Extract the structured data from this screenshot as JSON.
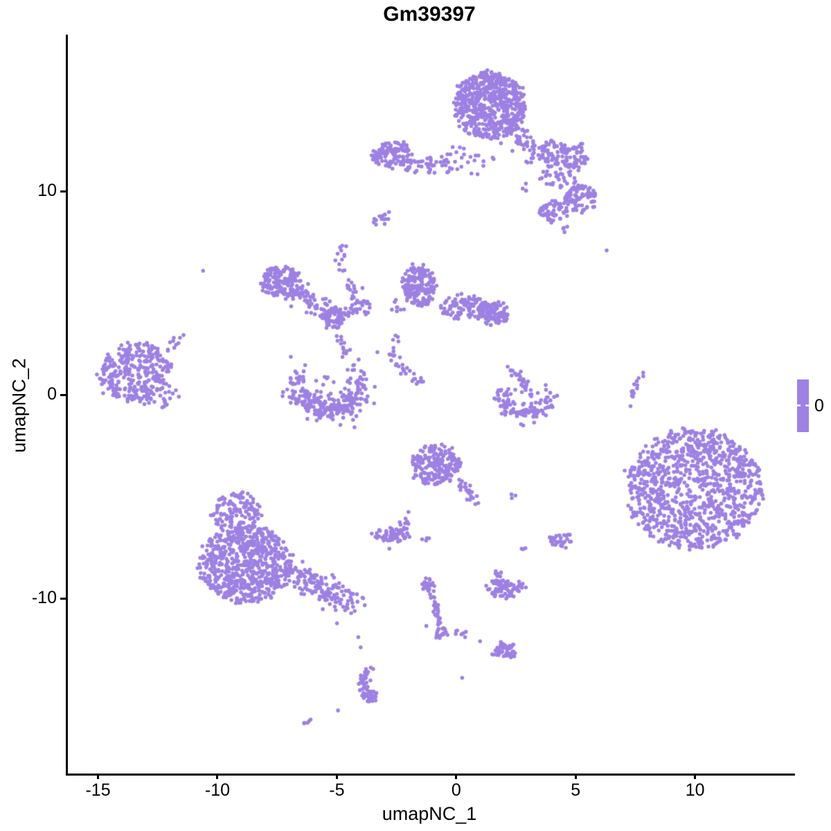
{
  "chart_data": {
    "type": "scatter",
    "title": "Gm39397",
    "xlabel": "umapNC_1",
    "ylabel": "umapNC_2",
    "x_ticks": [
      -15,
      -10,
      -5,
      0,
      5,
      10
    ],
    "y_ticks": [
      10,
      0,
      -10
    ],
    "xlim": [
      -16.35,
      14.1
    ],
    "ylim": [
      -18.6,
      17.7
    ],
    "grid": false,
    "legend": {
      "label": "0",
      "position": "right"
    },
    "point_color": "#9E81E3",
    "point_radius_px": 2.8,
    "clusters": [
      {
        "t": "b",
        "x": 1.4,
        "y": 14.2,
        "rx": 1.5,
        "ry": 1.65,
        "n": 620
      },
      {
        "t": "b",
        "x": 0.35,
        "y": 11.55,
        "rx": 1.3,
        "ry": 0.75,
        "n": 28
      },
      {
        "t": "c",
        "pts": [
          [
            2.2,
            13.3
          ],
          [
            2.8,
            12.4
          ],
          [
            3.35,
            11.5
          ]
        ],
        "w": 0.3,
        "n": 55
      },
      {
        "t": "b",
        "x": 4.05,
        "y": 11.85,
        "rx": 0.6,
        "ry": 0.65,
        "n": 55
      },
      {
        "t": "b",
        "x": 5.0,
        "y": 11.7,
        "rx": 0.55,
        "ry": 0.6,
        "n": 50
      },
      {
        "t": "b",
        "x": 4.4,
        "y": 10.8,
        "rx": 0.95,
        "ry": 0.65,
        "n": 42
      },
      {
        "t": "b",
        "x": 2.85,
        "y": 10.25,
        "rx": 0.18,
        "ry": 0.12,
        "n": 4
      },
      {
        "t": "b",
        "x": 5.2,
        "y": 9.65,
        "rx": 0.7,
        "ry": 0.65,
        "n": 90
      },
      {
        "t": "b",
        "x": 4.1,
        "y": 9.0,
        "rx": 0.65,
        "ry": 0.55,
        "n": 60
      },
      {
        "t": "b",
        "x": 4.6,
        "y": 8.1,
        "rx": 0.3,
        "ry": 0.2,
        "n": 4
      },
      {
        "t": "d",
        "x": 6.3,
        "y": 7.1
      },
      {
        "t": "b",
        "x": -2.7,
        "y": 11.8,
        "rx": 0.85,
        "ry": 0.7,
        "n": 120
      },
      {
        "t": "b",
        "x": -1.0,
        "y": 11.25,
        "rx": 1.25,
        "ry": 0.4,
        "n": 40
      },
      {
        "t": "c",
        "pts": [
          [
            -3.25,
            8.45
          ],
          [
            -2.85,
            8.95
          ]
        ],
        "w": 0.12,
        "n": 14
      },
      {
        "t": "d",
        "x": -10.6,
        "y": 6.1
      },
      {
        "t": "b",
        "x": -7.35,
        "y": 5.55,
        "rx": 0.85,
        "ry": 0.8,
        "n": 150
      },
      {
        "t": "c",
        "pts": [
          [
            -6.9,
            5.1
          ],
          [
            -6.1,
            4.55
          ],
          [
            -5.45,
            4.2
          ]
        ],
        "w": 0.28,
        "n": 60
      },
      {
        "t": "b",
        "x": -5.1,
        "y": 3.8,
        "rx": 0.55,
        "ry": 0.5,
        "n": 85
      },
      {
        "t": "b",
        "x": -4.15,
        "y": 4.35,
        "rx": 0.55,
        "ry": 0.45,
        "n": 32
      },
      {
        "t": "c",
        "pts": [
          [
            -4.95,
            7.5
          ],
          [
            -4.7,
            6.4
          ],
          [
            -4.45,
            5.4
          ],
          [
            -4.25,
            4.7
          ]
        ],
        "w": 0.12,
        "n": 26
      },
      {
        "t": "c",
        "pts": [
          [
            -4.95,
            3.1
          ],
          [
            -4.75,
            2.4
          ],
          [
            -4.6,
            1.8
          ]
        ],
        "w": 0.1,
        "n": 13
      },
      {
        "t": "b",
        "x": -1.55,
        "y": 5.35,
        "rx": 0.7,
        "ry": 1.05,
        "n": 170
      },
      {
        "t": "b",
        "x": 0.3,
        "y": 4.3,
        "rx": 1.05,
        "ry": 0.6,
        "n": 100
      },
      {
        "t": "b",
        "x": 1.55,
        "y": 4.0,
        "rx": 0.65,
        "ry": 0.6,
        "n": 95
      },
      {
        "t": "b",
        "x": -2.45,
        "y": 4.3,
        "rx": 0.25,
        "ry": 0.5,
        "n": 8
      },
      {
        "t": "c",
        "pts": [
          [
            -2.4,
            3.0
          ],
          [
            -2.6,
            2.3
          ],
          [
            -2.7,
            1.85
          ]
        ],
        "w": 0.1,
        "n": 10
      },
      {
        "t": "c",
        "pts": [
          [
            -2.65,
            1.6
          ],
          [
            -2.1,
            1.1
          ],
          [
            -1.5,
            0.6
          ]
        ],
        "w": 0.1,
        "n": 24
      },
      {
        "t": "d",
        "x": -3.3,
        "y": 2.1
      },
      {
        "t": "b",
        "x": -13.45,
        "y": 1.15,
        "rx": 1.55,
        "ry": 1.4,
        "n": 300
      },
      {
        "t": "c",
        "pts": [
          [
            -12.2,
            2.1
          ],
          [
            -11.65,
            2.8
          ]
        ],
        "w": 0.12,
        "n": 10
      },
      {
        "t": "b",
        "x": -12.45,
        "y": -0.1,
        "rx": 1.0,
        "ry": 0.5,
        "n": 26
      },
      {
        "t": "a",
        "x": -5.35,
        "y": 0.55,
        "rx": 1.25,
        "ry": 1.35,
        "a0": 150,
        "a1": 390,
        "w": 0.3,
        "n": 150
      },
      {
        "t": "a",
        "x": -5.35,
        "y": 0.5,
        "rx": 1.2,
        "ry": 1.25,
        "a0": 210,
        "a1": 330,
        "w": 0.3,
        "n": 110
      },
      {
        "t": "b",
        "x": -5.3,
        "y": 0.5,
        "rx": 0.7,
        "ry": 0.55,
        "n": 10
      },
      {
        "t": "a",
        "x": 2.9,
        "y": 0.2,
        "rx": 1.0,
        "ry": 1.1,
        "a0": 185,
        "a1": 355,
        "w": 0.26,
        "n": 110
      },
      {
        "t": "c",
        "pts": [
          [
            2.15,
            1.4
          ],
          [
            2.7,
            0.8
          ],
          [
            3.25,
            0.0
          ]
        ],
        "w": 0.13,
        "n": 30
      },
      {
        "t": "c",
        "pts": [
          [
            7.8,
            1.1
          ],
          [
            7.55,
            0.5
          ],
          [
            7.35,
            -0.2
          ]
        ],
        "w": 0.07,
        "n": 13
      },
      {
        "t": "d",
        "x": 7.3,
        "y": -0.55
      },
      {
        "t": "b",
        "x": 9.95,
        "y": -4.6,
        "rx": 2.9,
        "ry": 2.95,
        "n": 950
      },
      {
        "t": "b",
        "x": 9.9,
        "y": -4.6,
        "rx": 3.05,
        "ry": 3.1,
        "n": 50
      },
      {
        "t": "b",
        "x": -0.85,
        "y": -3.45,
        "rx": 1.0,
        "ry": 1.0,
        "n": 200
      },
      {
        "t": "c",
        "pts": [
          [
            0.15,
            -4.3
          ],
          [
            0.6,
            -4.9
          ],
          [
            0.95,
            -5.5
          ]
        ],
        "w": 0.12,
        "n": 22
      },
      {
        "t": "b",
        "x": 2.4,
        "y": -5.0,
        "rx": 0.2,
        "ry": 0.12,
        "n": 3
      },
      {
        "t": "b",
        "x": -2.7,
        "y": -6.85,
        "rx": 0.75,
        "ry": 0.35,
        "n": 65
      },
      {
        "t": "b",
        "x": -2.1,
        "y": -6.25,
        "rx": 0.35,
        "ry": 0.3,
        "n": 6
      },
      {
        "t": "d",
        "x": -2.0,
        "y": -5.75
      },
      {
        "t": "d",
        "x": -2.8,
        "y": -7.55
      },
      {
        "t": "b",
        "x": -1.3,
        "y": -7.05,
        "rx": 0.3,
        "ry": 0.15,
        "n": 4
      },
      {
        "t": "b",
        "x": 2.9,
        "y": -7.55,
        "rx": 0.15,
        "ry": 0.1,
        "n": 3
      },
      {
        "t": "b",
        "x": 4.4,
        "y": -7.15,
        "rx": 0.5,
        "ry": 0.38,
        "n": 30
      },
      {
        "t": "b",
        "x": -9.2,
        "y": -5.8,
        "rx": 1.05,
        "ry": 1.0,
        "n": 130
      },
      {
        "t": "b",
        "x": -8.85,
        "y": -8.3,
        "rx": 1.95,
        "ry": 1.9,
        "n": 680
      },
      {
        "t": "c",
        "pts": [
          [
            -7.0,
            -8.8
          ],
          [
            -5.9,
            -9.4
          ],
          [
            -5.0,
            -9.8
          ],
          [
            -4.15,
            -10.45
          ]
        ],
        "w": 0.33,
        "n": 160
      },
      {
        "t": "c",
        "pts": [
          [
            -1.3,
            -9.0
          ],
          [
            -1.15,
            -9.6
          ],
          [
            -0.85,
            -10.3
          ],
          [
            -0.75,
            -11.0
          ],
          [
            -0.62,
            -11.6
          ]
        ],
        "w": 0.09,
        "n": 42
      },
      {
        "t": "b",
        "x": -1.15,
        "y": -9.3,
        "rx": 0.28,
        "ry": 0.3,
        "n": 14
      },
      {
        "t": "b",
        "x": -0.62,
        "y": -11.7,
        "rx": 0.22,
        "ry": 0.3,
        "n": 18
      },
      {
        "t": "d",
        "x": -1.25,
        "y": -11.35
      },
      {
        "t": "b",
        "x": 2.05,
        "y": -9.5,
        "rx": 0.8,
        "ry": 0.45,
        "n": 80
      },
      {
        "t": "b",
        "x": 1.7,
        "y": -8.85,
        "rx": 0.22,
        "ry": 0.2,
        "n": 6
      },
      {
        "t": "c",
        "pts": [
          [
            -0.05,
            -11.55
          ],
          [
            0.4,
            -11.75
          ]
        ],
        "w": 0.07,
        "n": 8
      },
      {
        "t": "d",
        "x": 1.0,
        "y": -12.1
      },
      {
        "t": "b",
        "x": 2.0,
        "y": -12.6,
        "rx": 0.52,
        "ry": 0.35,
        "n": 50
      },
      {
        "t": "d",
        "x": 0.25,
        "y": -13.9
      },
      {
        "t": "d",
        "x": -4.1,
        "y": -11.9
      },
      {
        "t": "d",
        "x": -4.0,
        "y": -12.4
      },
      {
        "t": "c",
        "pts": [
          [
            -3.75,
            -13.4
          ],
          [
            -3.88,
            -14.2
          ],
          [
            -3.6,
            -14.9
          ]
        ],
        "w": 0.13,
        "n": 42
      },
      {
        "t": "b",
        "x": -3.62,
        "y": -14.8,
        "rx": 0.26,
        "ry": 0.3,
        "n": 18
      },
      {
        "t": "d",
        "x": -4.95,
        "y": -15.5
      },
      {
        "t": "c",
        "pts": [
          [
            -6.35,
            -16.2
          ],
          [
            -6.08,
            -16.0
          ]
        ],
        "w": 0.05,
        "n": 5
      }
    ]
  }
}
